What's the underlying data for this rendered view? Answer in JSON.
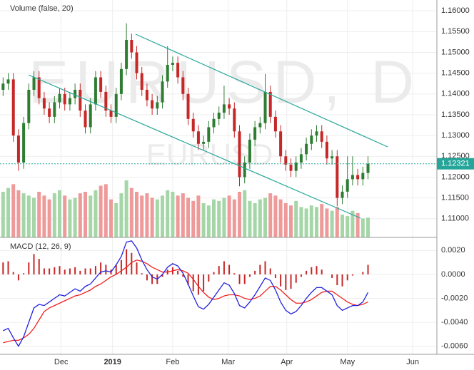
{
  "chart_data": [
    {
      "type": "candlestick",
      "title": "EURUSD, D",
      "subtitle": "EURUSD",
      "volume_label": "Volume (false, 20)",
      "up_color": "#2e7d32",
      "down_color": "#c62828",
      "volume_up_color": "#a5d6a7",
      "volume_down_color": "#ef9a9a",
      "grid": true,
      "open": [
        1.141,
        1.1425,
        1.1435,
        1.13,
        1.1235,
        1.133,
        1.141,
        1.144,
        1.139,
        1.1365,
        1.1345,
        1.138,
        1.14,
        1.1375,
        1.139,
        1.141,
        1.136,
        1.132,
        1.1375,
        1.144,
        1.1405,
        1.136,
        1.1345,
        1.14,
        1.146,
        1.153,
        1.15,
        1.145,
        1.141,
        1.1385,
        1.1365,
        1.138,
        1.143,
        1.147,
        1.1475,
        1.144,
        1.14,
        1.134,
        1.131,
        1.128,
        1.1285,
        1.132,
        1.134,
        1.1355,
        1.1375,
        1.1365,
        1.131,
        1.12,
        1.1235,
        1.129,
        1.132,
        1.133,
        1.1405,
        1.1345,
        1.131,
        1.125,
        1.123,
        1.1215,
        1.1235,
        1.1255,
        1.128,
        1.13,
        1.131,
        1.1285,
        1.1245,
        1.125,
        1.115,
        1.1165,
        1.1195,
        1.1205,
        1.1195,
        1.121
      ],
      "high": [
        1.144,
        1.145,
        1.145,
        1.1315,
        1.1345,
        1.1425,
        1.1455,
        1.1455,
        1.1405,
        1.138,
        1.1395,
        1.1415,
        1.1415,
        1.1405,
        1.1425,
        1.1425,
        1.1375,
        1.139,
        1.1455,
        1.1455,
        1.142,
        1.1375,
        1.1415,
        1.1475,
        1.157,
        1.1545,
        1.1515,
        1.1465,
        1.1425,
        1.14,
        1.1395,
        1.1445,
        1.1515,
        1.149,
        1.149,
        1.1455,
        1.1415,
        1.1355,
        1.1325,
        1.13,
        1.1335,
        1.1355,
        1.137,
        1.142,
        1.139,
        1.138,
        1.1325,
        1.125,
        1.1305,
        1.1335,
        1.1345,
        1.1448,
        1.142,
        1.136,
        1.1325,
        1.1265,
        1.1245,
        1.125,
        1.127,
        1.1295,
        1.1315,
        1.1325,
        1.1325,
        1.13,
        1.1265,
        1.1265,
        1.118,
        1.125,
        1.125,
        1.122,
        1.1225,
        1.125
      ],
      "low": [
        1.1395,
        1.141,
        1.1285,
        1.1215,
        1.122,
        1.1315,
        1.1395,
        1.1375,
        1.135,
        1.133,
        1.133,
        1.1365,
        1.136,
        1.136,
        1.1375,
        1.1345,
        1.1305,
        1.1305,
        1.136,
        1.139,
        1.1345,
        1.133,
        1.133,
        1.1385,
        1.1445,
        1.1485,
        1.1435,
        1.1395,
        1.137,
        1.135,
        1.135,
        1.1365,
        1.1415,
        1.1455,
        1.1425,
        1.1385,
        1.1325,
        1.1295,
        1.1265,
        1.1265,
        1.127,
        1.1305,
        1.1325,
        1.134,
        1.135,
        1.1295,
        1.1178,
        1.1185,
        1.122,
        1.1275,
        1.1305,
        1.1315,
        1.133,
        1.1295,
        1.1235,
        1.1215,
        1.12,
        1.12,
        1.122,
        1.124,
        1.1265,
        1.1285,
        1.127,
        1.123,
        1.123,
        1.113,
        1.1135,
        1.115,
        1.118,
        1.118,
        1.118,
        1.1195
      ],
      "close": [
        1.1425,
        1.1435,
        1.13,
        1.1235,
        1.133,
        1.141,
        1.144,
        1.139,
        1.1365,
        1.1345,
        1.138,
        1.14,
        1.1375,
        1.139,
        1.141,
        1.136,
        1.132,
        1.1375,
        1.144,
        1.1405,
        1.136,
        1.1345,
        1.14,
        1.146,
        1.153,
        1.15,
        1.145,
        1.141,
        1.1385,
        1.1365,
        1.138,
        1.143,
        1.147,
        1.1475,
        1.144,
        1.14,
        1.134,
        1.131,
        1.128,
        1.1285,
        1.132,
        1.134,
        1.1355,
        1.1375,
        1.1365,
        1.131,
        1.12,
        1.1235,
        1.129,
        1.132,
        1.133,
        1.1405,
        1.1345,
        1.131,
        1.125,
        1.123,
        1.1215,
        1.1235,
        1.1255,
        1.128,
        1.13,
        1.131,
        1.1285,
        1.1245,
        1.125,
        1.115,
        1.1165,
        1.1195,
        1.1205,
        1.1195,
        1.121,
        1.12321
      ],
      "volume": [
        60,
        65,
        70,
        62,
        58,
        55,
        52,
        60,
        55,
        50,
        58,
        62,
        55,
        50,
        52,
        58,
        60,
        55,
        62,
        68,
        70,
        50,
        45,
        58,
        75,
        65,
        60,
        55,
        58,
        52,
        50,
        55,
        62,
        60,
        55,
        58,
        52,
        48,
        55,
        45,
        42,
        50,
        48,
        52,
        55,
        50,
        60,
        62,
        48,
        45,
        50,
        52,
        58,
        55,
        50,
        45,
        42,
        48,
        40,
        38,
        42,
        40,
        44,
        38,
        35,
        40,
        30,
        28,
        35,
        32,
        25,
        26
      ],
      "ylim": [
        1.1055,
        1.1626
      ],
      "yticks": [
        {
          "value": 1.16,
          "label": "1.16000"
        },
        {
          "value": 1.155,
          "label": "1.15500"
        },
        {
          "value": 1.15,
          "label": "1.15000"
        },
        {
          "value": 1.145,
          "label": "1.14500"
        },
        {
          "value": 1.14,
          "label": "1.14000"
        },
        {
          "value": 1.135,
          "label": "1.13500"
        },
        {
          "value": 1.13,
          "label": "1.13000"
        },
        {
          "value": 1.125,
          "label": "1.12500"
        },
        {
          "value": 1.12,
          "label": "1.12000"
        },
        {
          "value": 1.115,
          "label": "1.11500"
        },
        {
          "value": 1.11,
          "label": "1.11000"
        }
      ],
      "xlim": [
        -0.6,
        84.4
      ],
      "xticks": [
        {
          "value": 11.3,
          "label": "Dec"
        },
        {
          "value": 21.3,
          "label": "2019"
        },
        {
          "value": 33,
          "label": "Feb"
        },
        {
          "value": 43.8,
          "label": "Mar"
        },
        {
          "value": 55.2,
          "label": "Apr"
        },
        {
          "value": 67,
          "label": "May"
        },
        {
          "value": 79.7,
          "label": "Jun"
        }
      ]
    },
    {
      "type": "macd",
      "title": "MACD (12, 26, 9)",
      "macd": {
        "color": "#2222dd",
        "values": [
          -0.0047,
          -0.0045,
          -0.0053,
          -0.006,
          -0.0052,
          -0.004,
          -0.0028,
          -0.0025,
          -0.0026,
          -0.0023,
          -0.002,
          -0.0017,
          -0.0018,
          -0.0015,
          -0.0012,
          -0.0014,
          -0.001,
          -0.0008,
          -0.0003,
          0.0002,
          0.0003,
          0.0002,
          0.0008,
          0.0015,
          0.0027,
          0.0028,
          0.0022,
          0.0012,
          0.0004,
          -0.0002,
          -0.0004,
          0.0,
          0.0006,
          0.0009,
          0.0007,
          0.0001,
          -0.0008,
          -0.0018,
          -0.0027,
          -0.0029,
          -0.0025,
          -0.0019,
          -0.0013,
          -0.0007,
          -0.0009,
          -0.0016,
          -0.0026,
          -0.0028,
          -0.0023,
          -0.0017,
          -0.001,
          -0.0003,
          -0.0005,
          -0.0013,
          -0.0023,
          -0.003,
          -0.0033,
          -0.0031,
          -0.0026,
          -0.002,
          -0.0015,
          -0.0011,
          -0.0011,
          -0.0014,
          -0.0017,
          -0.0026,
          -0.003,
          -0.0028,
          -0.0026,
          -0.0026,
          -0.0023,
          -0.0015
        ]
      },
      "signal": {
        "color": "#ee2222",
        "values": [
          -0.0057,
          -0.0056,
          -0.0055,
          -0.0055,
          -0.0053,
          -0.005,
          -0.0045,
          -0.0038,
          -0.0031,
          -0.0028,
          -0.0026,
          -0.0024,
          -0.0022,
          -0.002,
          -0.0018,
          -0.0017,
          -0.0015,
          -0.0013,
          -0.001,
          -0.0008,
          -0.0005,
          -0.0002,
          0.0,
          0.0003,
          0.0006,
          0.001,
          0.0012,
          0.0011,
          0.0009,
          0.0006,
          0.0004,
          0.0002,
          0.0002,
          0.0003,
          0.0004,
          0.0003,
          0.0001,
          -0.0004,
          -0.001,
          -0.0015,
          -0.0019,
          -0.0021,
          -0.002,
          -0.0018,
          -0.0017,
          -0.0017,
          -0.0018,
          -0.002,
          -0.0021,
          -0.002,
          -0.0018,
          -0.0014,
          -0.001,
          -0.001,
          -0.0013,
          -0.0017,
          -0.0021,
          -0.0024,
          -0.0024,
          -0.0023,
          -0.0021,
          -0.0018,
          -0.0015,
          -0.0014,
          -0.0014,
          -0.0017,
          -0.002,
          -0.0023,
          -0.0025,
          -0.0026,
          -0.0025,
          -0.0023
        ]
      },
      "histogram": {
        "color": "#c62828",
        "values": [
          0.001,
          0.0011,
          0.0002,
          -0.0005,
          0.0001,
          0.001,
          0.0017,
          0.0013,
          0.0005,
          0.0005,
          0.0006,
          0.0007,
          0.0004,
          0.0005,
          0.0006,
          0.0003,
          0.0005,
          0.0005,
          0.0007,
          0.001,
          0.0008,
          0.0004,
          0.0008,
          0.0012,
          0.0021,
          0.0018,
          0.001,
          0.0001,
          -0.0005,
          -0.0008,
          -0.0008,
          -0.0002,
          0.0004,
          0.0006,
          0.0003,
          -0.0002,
          -0.0009,
          -0.0014,
          -0.0017,
          -0.0014,
          -0.0006,
          0.0002,
          0.0007,
          0.0011,
          0.0008,
          0.0001,
          -0.0008,
          -0.0008,
          -0.0002,
          0.0003,
          0.0008,
          0.0011,
          0.0005,
          -0.0003,
          -0.001,
          -0.0013,
          -0.0012,
          -0.0007,
          -0.0002,
          0.0003,
          0.0006,
          0.0007,
          0.0004,
          0.0,
          -0.0003,
          -0.0009,
          -0.001,
          -0.0005,
          -0.0001,
          0.0,
          0.0002,
          0.0008
        ]
      },
      "ylim": [
        -0.00667,
        0.00309
      ],
      "yticks": [
        {
          "value": 0.002,
          "label": "0.0020"
        },
        {
          "value": 0,
          "label": "0.0000"
        },
        {
          "value": -0.002,
          "label": "-0.0020"
        },
        {
          "value": -0.004,
          "label": "-0.0040"
        },
        {
          "value": -0.006,
          "label": "-0.0060"
        }
      ]
    }
  ]
}
